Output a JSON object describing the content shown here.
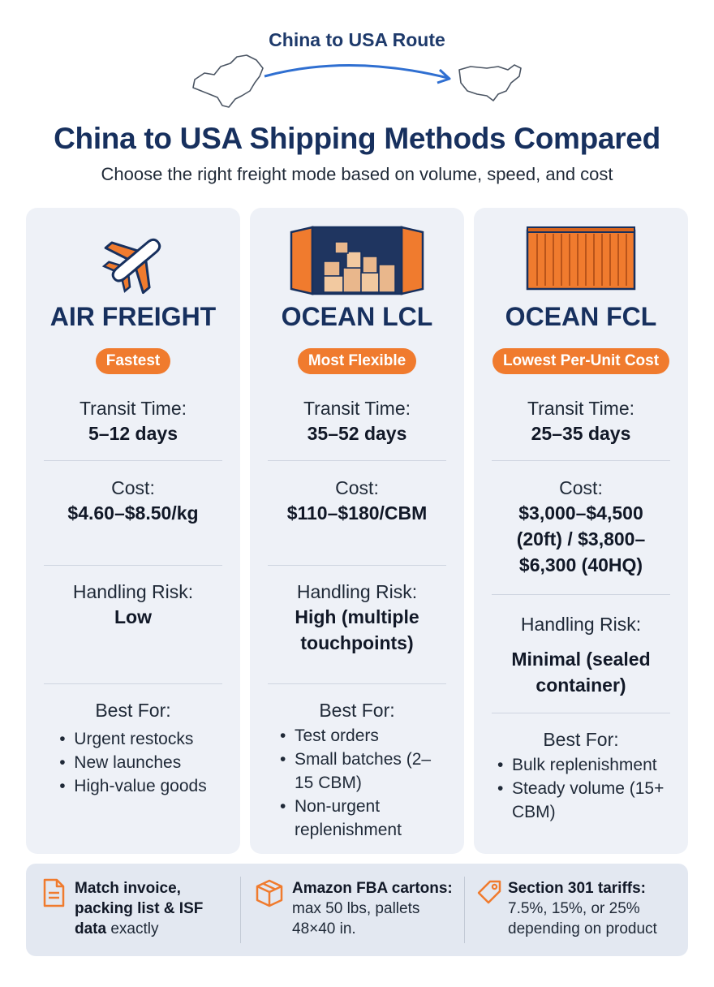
{
  "route": {
    "title": "China to USA Route"
  },
  "header": {
    "title": "China to USA Shipping Methods Compared",
    "subtitle": "Choose the right freight mode based on volume, speed, and cost"
  },
  "cards": [
    {
      "name": "AIR FREIGHT",
      "badge": "Fastest",
      "icon": "airplane-icon",
      "transit_label": "Transit Time:",
      "transit": "5–12 days",
      "cost_label": "Cost:",
      "cost": "$4.60–$8.50/kg",
      "risk_label": "Handling Risk:",
      "risk": "Low",
      "best_label": "Best For:",
      "best": [
        "Urgent restocks",
        "New launches",
        "High-value goods"
      ]
    },
    {
      "name": "OCEAN LCL",
      "badge": "Most Flexible",
      "icon": "open-container-icon",
      "transit_label": "Transit Time:",
      "transit": "35–52 days",
      "cost_label": "Cost:",
      "cost": "$110–$180/CBM",
      "risk_label": "Handling Risk:",
      "risk": "High (multiple touchpoints)",
      "best_label": "Best For:",
      "best": [
        "Test orders",
        "Small batches (2–15 CBM)",
        "Non-urgent replenishment"
      ]
    },
    {
      "name": "OCEAN FCL",
      "badge": "Lowest Per-Unit Cost",
      "icon": "shipping-container-icon",
      "transit_label": "Transit Time:",
      "transit": "25–35 days",
      "cost_label": "Cost:",
      "cost": "$3,000–$4,500 (20ft) / $3,800–$6,300 (40HQ)",
      "risk_label": "Handling Risk:",
      "risk": "Minimal (sealed container)",
      "best_label": "Best For:",
      "best": [
        "Bulk replenishment",
        "Steady volume (15+ CBM)"
      ]
    }
  ],
  "footer": {
    "tips": [
      {
        "icon": "document-icon",
        "bold": "Match invoice, packing list & ISF data",
        "rest": " exactly"
      },
      {
        "icon": "box-icon",
        "bold": "Amazon FBA cartons:",
        "rest": " max 50 lbs, pallets 48×40 in."
      },
      {
        "icon": "tag-icon",
        "bold": "Section 301 tariffs:",
        "rest": " 7.5%, 15%, or 25% depending on product"
      }
    ]
  },
  "colors": {
    "accent": "#f07b2e",
    "navy": "#17305e",
    "card_bg": "#eef1f7"
  }
}
